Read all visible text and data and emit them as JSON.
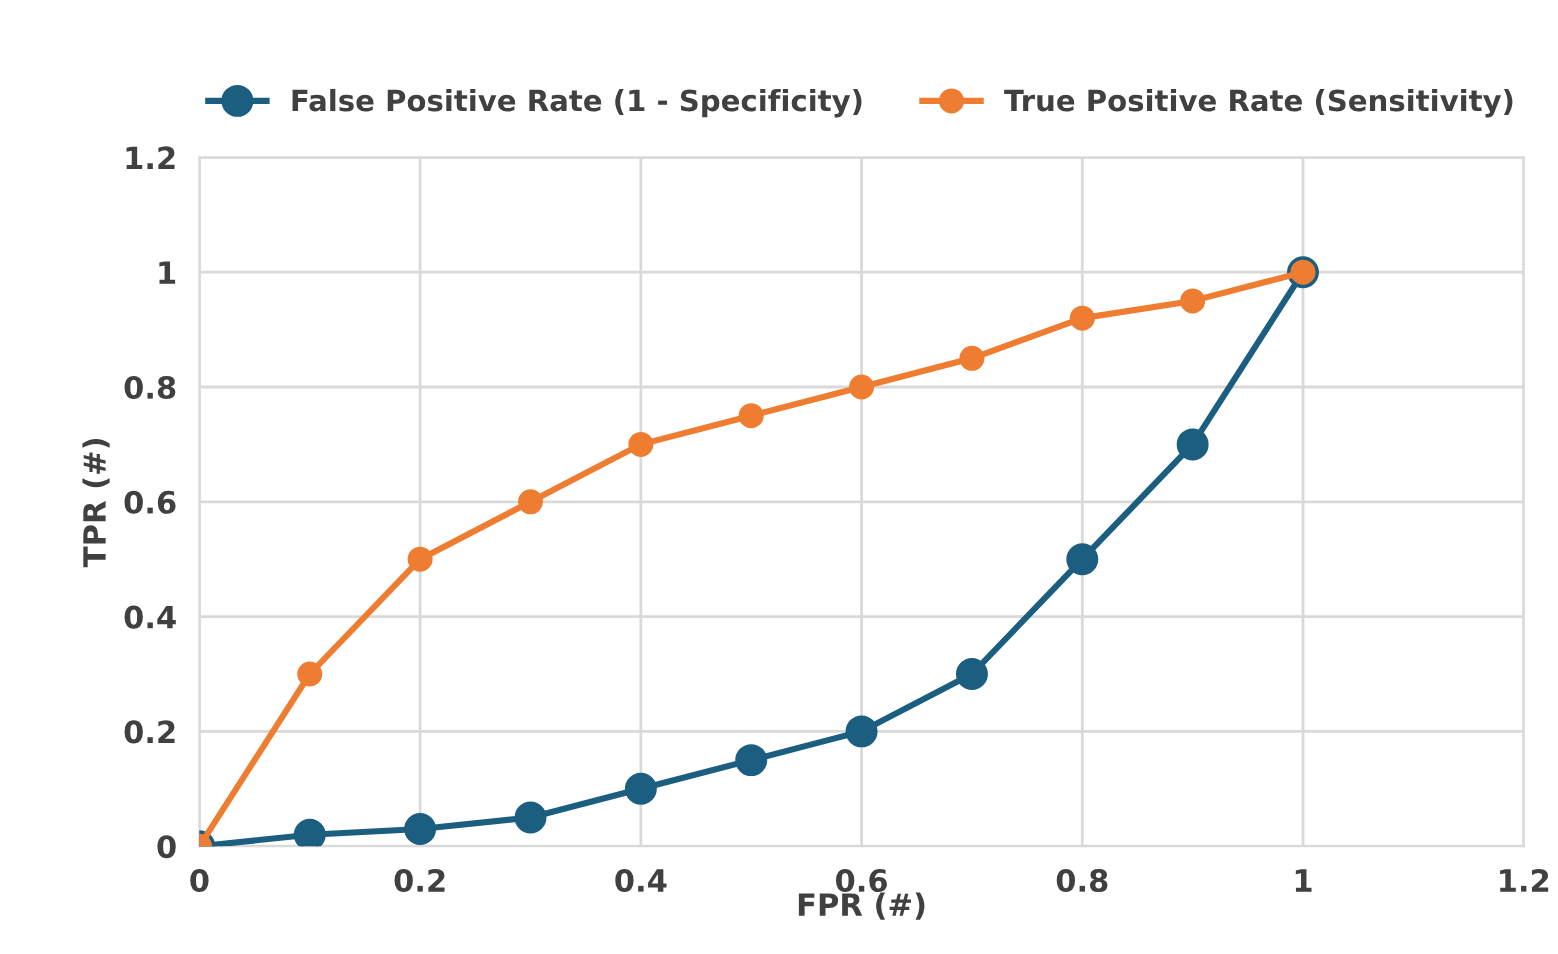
{
  "chart_data": {
    "type": "line",
    "xlabel": "FPR (#)",
    "ylabel": "TPR (#)",
    "xlim": [
      0,
      1.2
    ],
    "xticks": [
      0,
      0.2,
      0.4,
      0.6,
      0.8,
      1,
      1.2
    ],
    "ylim": [
      0,
      1.2
    ],
    "yticks": [
      0,
      0.2,
      0.4,
      0.6,
      0.8,
      1,
      1.2
    ],
    "grid": true,
    "legend": "top",
    "marker": "circle",
    "line_style": "solid",
    "series": [
      {
        "name": "False Positive Rate (1 - Specificity)",
        "color": "#1b5e80",
        "x": [
          0,
          0.1,
          0.2,
          0.3,
          0.4,
          0.5,
          0.6,
          0.7,
          0.8,
          0.9,
          1
        ],
        "values": [
          0,
          0.02,
          0.03,
          0.05,
          0.1,
          0.15,
          0.2,
          0.3,
          0.5,
          0.7,
          1
        ]
      },
      {
        "name": "True Positive Rate (Sensitivity)",
        "color": "#ee7d31",
        "x": [
          0,
          0.1,
          0.2,
          0.3,
          0.4,
          0.5,
          0.6,
          0.7,
          0.8,
          0.9,
          1
        ],
        "values": [
          0,
          0.3,
          0.5,
          0.6,
          0.7,
          0.75,
          0.8,
          0.85,
          0.92,
          0.95,
          1
        ]
      }
    ]
  }
}
